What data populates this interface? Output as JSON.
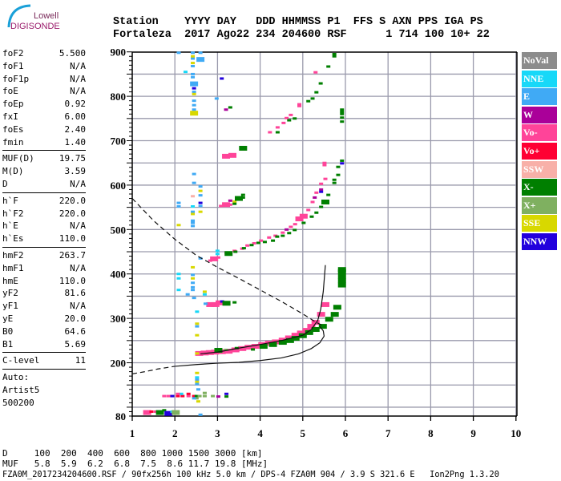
{
  "logo": {
    "line1": "Lowell",
    "line2": "DIGISONDE"
  },
  "header": {
    "labels": "Station    YYYY DAY   DDD HHMMSS P1  FFS S AXN PPS IGA PS",
    "values": "Fortaleza  2017 Ago22 234 204600 RSF      1 714 100 10+ 22"
  },
  "params": {
    "group1": [
      [
        "foF2",
        "5.500"
      ],
      [
        "foF1",
        "N/A"
      ],
      [
        "foF1p",
        "N/A"
      ],
      [
        "foE",
        "N/A"
      ],
      [
        "foEp",
        "0.92"
      ],
      [
        "fxI",
        "6.00"
      ],
      [
        "foEs",
        "2.40"
      ],
      [
        "fmin",
        "1.40"
      ]
    ],
    "group2": [
      [
        "MUF(D)",
        "19.75"
      ],
      [
        "M(D)",
        "3.59"
      ],
      [
        "D",
        "N/A"
      ]
    ],
    "group3": [
      [
        "h`F",
        "220.0"
      ],
      [
        "h`F2",
        "220.0"
      ],
      [
        "h`E",
        "N/A"
      ],
      [
        "h`Es",
        "110.0"
      ]
    ],
    "group4": [
      [
        "hmF2",
        "263.7"
      ],
      [
        "hmF1",
        "N/A"
      ],
      [
        "hmE",
        "110.0"
      ],
      [
        "yF2",
        "81.6"
      ],
      [
        "yF1",
        "N/A"
      ],
      [
        "yE",
        "20.0"
      ],
      [
        "B0",
        "64.6"
      ],
      [
        "B1",
        "5.69"
      ]
    ],
    "group5": [
      [
        "C-level",
        "11"
      ]
    ],
    "auto": [
      "Auto:",
      "Artist5",
      "500200"
    ]
  },
  "legend": [
    {
      "key": "NoVal",
      "label": "NoVal",
      "color": "#8c8c8c"
    },
    {
      "key": "NNE",
      "label": "NNE",
      "color": "#17d8f8"
    },
    {
      "key": "E",
      "label": "E",
      "color": "#40aaf5"
    },
    {
      "key": "W",
      "label": "W",
      "color": "#aa0099"
    },
    {
      "key": "Vo-",
      "label": "Vo-",
      "color": "#ff4499"
    },
    {
      "key": "Vo+",
      "label": "Vo+",
      "color": "#ff0033"
    },
    {
      "key": "SSW",
      "label": "SSW",
      "color": "#f8b0a8"
    },
    {
      "key": "X-",
      "label": "X-",
      "color": "#007f00"
    },
    {
      "key": "X+",
      "label": "X+",
      "color": "#7fb060"
    },
    {
      "key": "SSE",
      "label": "SSE",
      "color": "#d8d800"
    },
    {
      "key": "NNW",
      "label": "NNW",
      "color": "#2200dd"
    }
  ],
  "bottom": {
    "d_row": "D     100  200  400  600  800 1000 1500 3000 [km]",
    "muf_row": "MUF   5.8  5.9  6.2  6.8  7.5  8.6 11.7 19.8 [MHz]",
    "footer": "FZA0M_2017234204600.RSF / 90fx256h 100 kHz 5.0 km / DPS-4 FZA0M 904 / 3.9 S 321.6 E   Ion2Png 1.3.20"
  },
  "chart_data": {
    "type": "scatter",
    "xlim": [
      1,
      10
    ],
    "ylim": [
      80,
      900
    ],
    "x_ticks": [
      "1",
      "2",
      "3",
      "4",
      "5",
      "6",
      "7",
      "8",
      "9",
      "10"
    ],
    "y_ticks": [
      {
        "v": 900,
        "t": "900"
      },
      {
        "v": 800,
        "t": "800"
      },
      {
        "v": 700,
        "t": "700"
      },
      {
        "v": 600,
        "t": "600"
      },
      {
        "v": 500,
        "t": "500"
      },
      {
        "v": 400,
        "t": "400"
      },
      {
        "v": 300,
        "t": "300"
      },
      {
        "v": 200,
        "t": "200"
      },
      {
        "v": 80,
        "t": "80"
      }
    ],
    "grid": true,
    "echoes": [
      [
        2.57,
        221,
        "Vo-",
        2
      ],
      [
        2.7,
        222,
        "Vo-",
        2
      ],
      [
        2.82,
        223,
        "Vo-",
        2
      ],
      [
        2.94,
        224,
        "Vo-",
        2
      ],
      [
        3.1,
        225,
        "Vo-",
        2
      ],
      [
        3.26,
        226,
        "Vo-",
        2
      ],
      [
        3.42,
        229,
        "Vo-",
        2
      ],
      [
        3.58,
        232,
        "Vo-",
        2
      ],
      [
        3.73,
        235,
        "Vo-",
        2
      ],
      [
        3.89,
        237,
        "Vo-",
        2
      ],
      [
        4.05,
        241,
        "Vo-",
        2
      ],
      [
        4.21,
        244,
        "Vo-",
        2
      ],
      [
        4.37,
        247,
        "Vo-",
        2
      ],
      [
        4.53,
        251,
        "Vo-",
        2
      ],
      [
        4.68,
        256,
        "Vo-",
        2
      ],
      [
        4.83,
        262,
        "Vo-",
        2
      ],
      [
        4.96,
        267,
        "Vo-",
        2
      ],
      [
        5.09,
        273,
        "Vo-",
        2
      ],
      [
        5.2,
        282,
        "Vo-",
        2
      ],
      [
        5.3,
        291,
        "Vo-",
        2
      ],
      [
        5.43,
        309,
        "Vo-",
        2
      ],
      [
        5.53,
        331,
        "Vo-",
        2
      ],
      [
        3.02,
        228,
        "X-",
        2
      ],
      [
        3.2,
        229,
        "X+"
      ],
      [
        3.45,
        233,
        "X-"
      ],
      [
        3.83,
        230,
        "X-"
      ],
      [
        4.08,
        237,
        "X-",
        2
      ],
      [
        4.3,
        241,
        "X-",
        2
      ],
      [
        4.53,
        246,
        "X-",
        2
      ],
      [
        4.7,
        250,
        "X-",
        2
      ],
      [
        4.83,
        255,
        "X-",
        2
      ],
      [
        5.0,
        261,
        "X-",
        2
      ],
      [
        5.15,
        268,
        "X-",
        2
      ],
      [
        5.3,
        275,
        "X-",
        2
      ],
      [
        5.47,
        282,
        "X-",
        2
      ],
      [
        5.62,
        298,
        "X-",
        2
      ],
      [
        5.75,
        309,
        "X-",
        2
      ],
      [
        5.81,
        325,
        "X-",
        2
      ],
      [
        5.92,
        375,
        "X-",
        2
      ],
      [
        5.92,
        385,
        "X-",
        2
      ],
      [
        5.92,
        395,
        "X-",
        2
      ],
      [
        5.92,
        405,
        "X-",
        2
      ],
      [
        5.92,
        410,
        "X-",
        2
      ],
      [
        2.83,
        430,
        "Vo-"
      ],
      [
        2.92,
        434,
        "Vo-",
        2
      ],
      [
        3.02,
        437,
        "Vo-"
      ],
      [
        3.21,
        448,
        "Vo-"
      ],
      [
        3.4,
        452,
        "Vo-"
      ],
      [
        3.58,
        457,
        "Vo-"
      ],
      [
        3.7,
        464,
        "Vo-"
      ],
      [
        3.86,
        469,
        "Vo-"
      ],
      [
        4.02,
        475,
        "Vo-"
      ],
      [
        4.21,
        482,
        "Vo-"
      ],
      [
        4.36,
        486,
        "Vo-"
      ],
      [
        4.53,
        493,
        "Vo-"
      ],
      [
        4.62,
        500,
        "W"
      ],
      [
        4.72,
        506,
        "Vo-"
      ],
      [
        4.82,
        512,
        "Vo-"
      ],
      [
        4.92,
        524,
        "Vo-",
        2
      ],
      [
        5.02,
        530,
        "Vo-",
        2
      ],
      [
        5.13,
        544,
        "Vo-"
      ],
      [
        5.23,
        562,
        "Vo-"
      ],
      [
        5.28,
        572,
        "W"
      ],
      [
        5.32,
        583,
        "Vo-"
      ],
      [
        5.43,
        590,
        "W"
      ],
      [
        5.43,
        585,
        "NNW"
      ],
      [
        5.43,
        603,
        "Vo-"
      ],
      [
        5.53,
        614,
        "Vo-"
      ],
      [
        5.51,
        645,
        "Vo-"
      ],
      [
        5.51,
        650,
        "Vo-"
      ],
      [
        3.26,
        446,
        "X-",
        2
      ],
      [
        3.42,
        450,
        "X-"
      ],
      [
        3.62,
        458,
        "X-"
      ],
      [
        3.8,
        465,
        "X-"
      ],
      [
        3.96,
        470,
        "X-"
      ],
      [
        4.11,
        472,
        "X-"
      ],
      [
        4.3,
        475,
        "X-"
      ],
      [
        4.4,
        484,
        "X-"
      ],
      [
        4.53,
        486,
        "X-"
      ],
      [
        4.68,
        492,
        "X-"
      ],
      [
        4.81,
        499,
        "X-"
      ],
      [
        5.02,
        515,
        "X-"
      ],
      [
        5.21,
        529,
        "X-"
      ],
      [
        5.32,
        538,
        "X-"
      ],
      [
        5.43,
        551,
        "X-"
      ],
      [
        5.53,
        562,
        "X-",
        2
      ],
      [
        5.6,
        578,
        "X-"
      ],
      [
        5.74,
        605,
        "X-"
      ],
      [
        5.74,
        612,
        "X-"
      ],
      [
        5.83,
        623,
        "X-"
      ],
      [
        5.83,
        641,
        "X-"
      ],
      [
        5.92,
        649,
        "NNW"
      ],
      [
        5.92,
        655,
        "X-"
      ],
      [
        4.23,
        719,
        "Vo-"
      ],
      [
        4.41,
        730,
        "Vo-"
      ],
      [
        4.41,
        719,
        "X-"
      ],
      [
        4.55,
        740,
        "Vo-"
      ],
      [
        4.62,
        751,
        "Vo-"
      ],
      [
        4.68,
        746,
        "X-"
      ],
      [
        4.72,
        758,
        "Vo-"
      ],
      [
        4.81,
        750,
        "X-"
      ],
      [
        4.92,
        782,
        "Vo-"
      ],
      [
        4.92,
        778,
        "Vo-"
      ],
      [
        5.13,
        789,
        "X-"
      ],
      [
        5.23,
        795,
        "X-"
      ],
      [
        5.32,
        809,
        "X-"
      ],
      [
        5.42,
        829,
        "X-"
      ],
      [
        5.3,
        854,
        "Vo-"
      ],
      [
        5.6,
        867,
        "X-"
      ],
      [
        5.74,
        890,
        "X-"
      ],
      [
        5.74,
        895,
        "X-"
      ],
      [
        5.92,
        743,
        "X-"
      ],
      [
        5.92,
        752,
        "X-"
      ],
      [
        5.92,
        760,
        "X-"
      ],
      [
        5.92,
        765,
        "X-"
      ],
      [
        5.92,
        770,
        "X-"
      ],
      [
        3.2,
        665,
        "Vo-",
        2
      ],
      [
        3.35,
        667,
        "Vo-",
        2
      ],
      [
        3.6,
        683,
        "X-",
        2
      ],
      [
        3.08,
        553,
        "Vo-"
      ],
      [
        3.2,
        556,
        "Vo-",
        2
      ],
      [
        3.3,
        556,
        "Vo-"
      ],
      [
        3.4,
        563,
        "SSE"
      ],
      [
        3.4,
        558,
        "X-"
      ],
      [
        3.3,
        565,
        "W"
      ],
      [
        3.5,
        570,
        "X-",
        2
      ],
      [
        3.6,
        572,
        "X-"
      ],
      [
        3.6,
        578,
        "X-"
      ],
      [
        3.1,
        840,
        "NNW"
      ],
      [
        2.98,
        795,
        "E"
      ],
      [
        3.2,
        770,
        "W"
      ],
      [
        3.3,
        775,
        "X-"
      ],
      [
        2.83,
        331,
        "Vo-",
        2
      ],
      [
        2.95,
        331,
        "Vo-",
        2
      ],
      [
        3.05,
        335,
        "Vo-",
        2
      ],
      [
        3.11,
        338,
        "NNW"
      ],
      [
        3.21,
        334,
        "X-",
        2
      ],
      [
        3.4,
        336,
        "X-"
      ],
      [
        2.72,
        333,
        "E"
      ],
      [
        2.09,
        898,
        "E"
      ],
      [
        2.42,
        898,
        "E"
      ],
      [
        2.42,
        885,
        "E"
      ],
      [
        2.6,
        898,
        "E"
      ],
      [
        2.6,
        883,
        "E",
        2
      ],
      [
        2.25,
        855,
        "NNE"
      ],
      [
        2.42,
        850,
        "E"
      ],
      [
        2.42,
        843,
        "E"
      ],
      [
        2.45,
        828,
        "E",
        2
      ],
      [
        2.45,
        818,
        "NNW"
      ],
      [
        2.45,
        810,
        "E"
      ],
      [
        2.45,
        805,
        "SSE"
      ],
      [
        2.45,
        790,
        "E"
      ],
      [
        2.45,
        780,
        "E"
      ],
      [
        2.45,
        770,
        "E"
      ],
      [
        2.45,
        762,
        "SSE",
        2
      ],
      [
        2.42,
        875,
        "SSE"
      ],
      [
        2.42,
        868,
        "E"
      ],
      [
        2.42,
        890,
        "SSE"
      ],
      [
        2.45,
        625,
        "E"
      ],
      [
        2.45,
        605,
        "E"
      ],
      [
        2.6,
        597,
        "E"
      ],
      [
        2.6,
        587,
        "SSE"
      ],
      [
        2.6,
        577,
        "E"
      ],
      [
        2.42,
        575,
        "SSW"
      ],
      [
        2.09,
        560,
        "E"
      ],
      [
        2.09,
        552,
        "E"
      ],
      [
        2.6,
        560,
        "NNW"
      ],
      [
        2.6,
        553,
        "E"
      ],
      [
        2.42,
        552,
        "NNE"
      ],
      [
        2.42,
        540,
        "E"
      ],
      [
        2.42,
        535,
        "SSE"
      ],
      [
        2.6,
        540,
        "SSE"
      ],
      [
        2.42,
        520,
        "E"
      ],
      [
        2.42,
        515,
        "E"
      ],
      [
        2.09,
        510,
        "SSE"
      ],
      [
        2.42,
        508,
        "E"
      ],
      [
        2.09,
        400,
        "NNE"
      ],
      [
        2.09,
        390,
        "NNE"
      ],
      [
        2.42,
        415,
        "SSE"
      ],
      [
        2.42,
        398,
        "E"
      ],
      [
        2.42,
        390,
        "SSE"
      ],
      [
        2.42,
        380,
        "E"
      ],
      [
        2.42,
        370,
        "E"
      ],
      [
        2.42,
        364,
        "E"
      ],
      [
        2.09,
        364,
        "NNE"
      ],
      [
        2.3,
        354,
        "E"
      ],
      [
        2.45,
        346,
        "E"
      ],
      [
        2.7,
        360,
        "SSE"
      ],
      [
        2.7,
        354,
        "NNE"
      ],
      [
        2.52,
        315,
        "NNE"
      ],
      [
        2.52,
        288,
        "SSE"
      ],
      [
        2.52,
        282,
        "E"
      ],
      [
        2.52,
        262,
        "SSE"
      ],
      [
        2.6,
        435,
        "E"
      ],
      [
        3.0,
        452,
        "NNE"
      ],
      [
        3.0,
        445,
        "NNE"
      ],
      [
        2.52,
        221,
        "SSE"
      ],
      [
        2.52,
        177,
        "SSE"
      ],
      [
        2.52,
        167,
        "NNE"
      ],
      [
        2.52,
        162,
        "E"
      ],
      [
        2.52,
        157,
        "SSE"
      ],
      [
        2.52,
        152,
        "E"
      ],
      [
        2.55,
        140,
        "E"
      ],
      [
        2.55,
        113,
        "SSE"
      ],
      [
        2.6,
        83,
        "E"
      ],
      [
        1.75,
        125,
        "Vo-"
      ],
      [
        1.85,
        125,
        "Vo-"
      ],
      [
        1.94,
        125,
        "NNW"
      ],
      [
        2.07,
        125,
        "Vo+"
      ],
      [
        2.18,
        125,
        "Vo+"
      ],
      [
        2.32,
        125,
        "Vo-"
      ],
      [
        2.32,
        130,
        "Vo+"
      ],
      [
        2.15,
        130,
        "NNE"
      ],
      [
        2.07,
        130,
        "Vo-"
      ],
      [
        2.45,
        125,
        "Vo+"
      ],
      [
        2.51,
        125,
        "X-"
      ],
      [
        2.58,
        125,
        "X+"
      ],
      [
        2.7,
        125,
        "X+"
      ],
      [
        2.89,
        125,
        "X+"
      ],
      [
        3.02,
        124,
        "W"
      ],
      [
        3.21,
        124,
        "X-"
      ],
      [
        3.21,
        130,
        "NNW"
      ],
      [
        2.7,
        132,
        "X+"
      ],
      [
        2.51,
        120,
        "X+"
      ],
      [
        2.45,
        120,
        "E"
      ],
      [
        1.35,
        88,
        "Vo-",
        2
      ],
      [
        1.45,
        90,
        "Vo+"
      ],
      [
        1.55,
        90,
        "Vo-"
      ],
      [
        1.65,
        88,
        "X-",
        2
      ],
      [
        1.75,
        93,
        "X-"
      ],
      [
        1.85,
        86,
        "NNW",
        2
      ],
      [
        1.94,
        90,
        "NNE"
      ],
      [
        2.02,
        88,
        "X+",
        2
      ]
    ],
    "profile_upper": [
      [
        2.6,
        220
      ],
      [
        3.0,
        224
      ],
      [
        3.5,
        233
      ],
      [
        4.0,
        241
      ],
      [
        4.5,
        250
      ],
      [
        5.0,
        262
      ],
      [
        5.2,
        275
      ],
      [
        5.35,
        295
      ],
      [
        5.42,
        320
      ],
      [
        5.48,
        360
      ],
      [
        5.53,
        420
      ]
    ],
    "profile_lower": [
      [
        2.0,
        192
      ],
      [
        2.5,
        196
      ],
      [
        3.0,
        199
      ],
      [
        3.5,
        201
      ],
      [
        4.0,
        205
      ],
      [
        4.5,
        211
      ],
      [
        4.9,
        220
      ],
      [
        5.2,
        232
      ],
      [
        5.4,
        245
      ],
      [
        5.5,
        260
      ],
      [
        5.48,
        272
      ],
      [
        5.4,
        282
      ]
    ],
    "profile_dashed": [
      [
        1.0,
        175
      ],
      [
        1.3,
        180
      ],
      [
        1.6,
        186
      ],
      [
        2.0,
        192
      ]
    ],
    "muf_curve": [
      [
        1.0,
        570
      ],
      [
        1.5,
        520
      ],
      [
        2.0,
        478
      ],
      [
        2.5,
        442
      ],
      [
        3.0,
        415
      ],
      [
        3.5,
        390
      ],
      [
        4.0,
        364
      ],
      [
        4.5,
        338
      ],
      [
        5.0,
        310
      ],
      [
        5.3,
        292
      ],
      [
        5.5,
        282
      ]
    ]
  }
}
